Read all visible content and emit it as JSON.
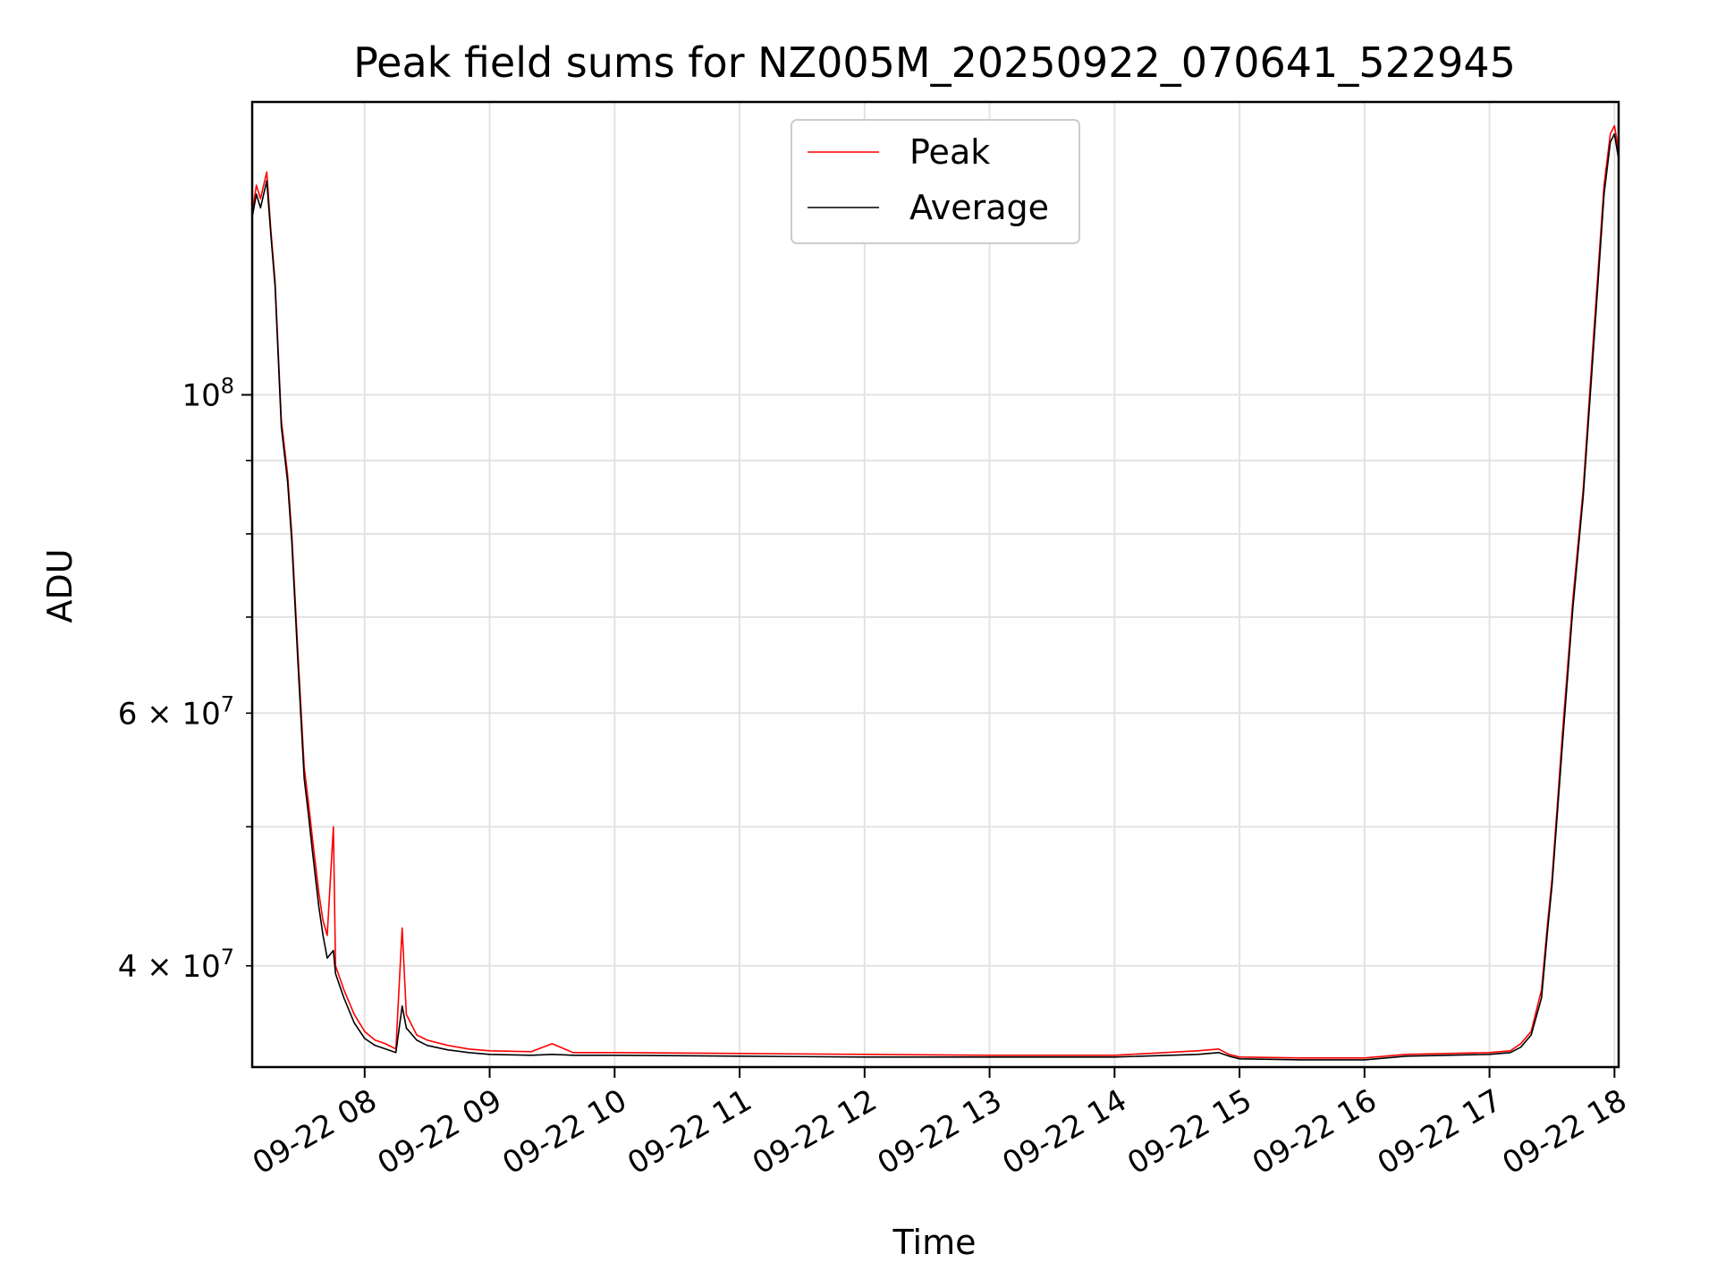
{
  "chart_data": {
    "type": "line",
    "title": "Peak field sums for NZ005M_20250922_070641_522945",
    "xlabel": "Time",
    "ylabel": "ADU",
    "yscale": "log",
    "grid": true,
    "legend_position": "top-center",
    "xlim": [
      "2025-09-22T07:06",
      "2025-09-22T18:02"
    ],
    "ylim": [
      34000000,
      160000000
    ],
    "x_ticks": [
      {
        "at": "2025-09-22T08:00",
        "label": "09-22 08"
      },
      {
        "at": "2025-09-22T09:00",
        "label": "09-22 09"
      },
      {
        "at": "2025-09-22T10:00",
        "label": "09-22 10"
      },
      {
        "at": "2025-09-22T11:00",
        "label": "09-22 11"
      },
      {
        "at": "2025-09-22T12:00",
        "label": "09-22 12"
      },
      {
        "at": "2025-09-22T13:00",
        "label": "09-22 13"
      },
      {
        "at": "2025-09-22T14:00",
        "label": "09-22 14"
      },
      {
        "at": "2025-09-22T15:00",
        "label": "09-22 15"
      },
      {
        "at": "2025-09-22T16:00",
        "label": "09-22 16"
      },
      {
        "at": "2025-09-22T17:00",
        "label": "09-22 17"
      },
      {
        "at": "2025-09-22T18:00",
        "label": "09-22 18"
      }
    ],
    "y_major_ticks": [
      {
        "value": 100000000,
        "base": "10",
        "exp": "8",
        "mult": ""
      }
    ],
    "y_minor_ticks": [
      {
        "value": 40000000,
        "mult": "4",
        "base": "10",
        "exp": "7"
      },
      {
        "value": 60000000,
        "mult": "6",
        "base": "10",
        "exp": "7"
      }
    ],
    "y_minor_unlabeled": [
      50000000,
      70000000,
      80000000,
      90000000
    ],
    "series": [
      {
        "name": "Peak",
        "color": "#ff0000",
        "points": [
          [
            "2025-09-22T07:06",
            134000000
          ],
          [
            "2025-09-22T07:08",
            140000000
          ],
          [
            "2025-09-22T07:10",
            137000000
          ],
          [
            "2025-09-22T07:13",
            143000000
          ],
          [
            "2025-09-22T07:15",
            130000000
          ],
          [
            "2025-09-22T07:17",
            120000000
          ],
          [
            "2025-09-22T07:20",
            96000000
          ],
          [
            "2025-09-22T07:23",
            88000000
          ],
          [
            "2025-09-22T07:25",
            80000000
          ],
          [
            "2025-09-22T07:28",
            66000000
          ],
          [
            "2025-09-22T07:31",
            55000000
          ],
          [
            "2025-09-22T07:33",
            52000000
          ],
          [
            "2025-09-22T07:35",
            49000000
          ],
          [
            "2025-09-22T07:38",
            45000000
          ],
          [
            "2025-09-22T07:40",
            43000000
          ],
          [
            "2025-09-22T07:42",
            42000000
          ],
          [
            "2025-09-22T07:45",
            50000000
          ],
          [
            "2025-09-22T07:46",
            40000000
          ],
          [
            "2025-09-22T07:50",
            38500000
          ],
          [
            "2025-09-22T07:55",
            37000000
          ],
          [
            "2025-09-22T08:00",
            36000000
          ],
          [
            "2025-09-22T08:05",
            35500000
          ],
          [
            "2025-09-22T08:10",
            35300000
          ],
          [
            "2025-09-22T08:15",
            35000000
          ],
          [
            "2025-09-22T08:18",
            42500000
          ],
          [
            "2025-09-22T08:20",
            37000000
          ],
          [
            "2025-09-22T08:25",
            35800000
          ],
          [
            "2025-09-22T08:30",
            35500000
          ],
          [
            "2025-09-22T08:40",
            35200000
          ],
          [
            "2025-09-22T08:50",
            35000000
          ],
          [
            "2025-09-22T09:00",
            34900000
          ],
          [
            "2025-09-22T09:20",
            34850000
          ],
          [
            "2025-09-22T09:30",
            35300000
          ],
          [
            "2025-09-22T09:40",
            34800000
          ],
          [
            "2025-09-22T10:00",
            34800000
          ],
          [
            "2025-09-22T11:00",
            34750000
          ],
          [
            "2025-09-22T12:00",
            34700000
          ],
          [
            "2025-09-22T13:00",
            34650000
          ],
          [
            "2025-09-22T14:00",
            34650000
          ],
          [
            "2025-09-22T14:40",
            34900000
          ],
          [
            "2025-09-22T14:50",
            35000000
          ],
          [
            "2025-09-22T14:55",
            34700000
          ],
          [
            "2025-09-22T15:00",
            34550000
          ],
          [
            "2025-09-22T15:30",
            34500000
          ],
          [
            "2025-09-22T16:00",
            34500000
          ],
          [
            "2025-09-22T16:20",
            34700000
          ],
          [
            "2025-09-22T16:40",
            34750000
          ],
          [
            "2025-09-22T17:00",
            34800000
          ],
          [
            "2025-09-22T17:10",
            34900000
          ],
          [
            "2025-09-22T17:15",
            35300000
          ],
          [
            "2025-09-22T17:20",
            36000000
          ],
          [
            "2025-09-22T17:25",
            38500000
          ],
          [
            "2025-09-22T17:28",
            43000000
          ],
          [
            "2025-09-22T17:30",
            46000000
          ],
          [
            "2025-09-22T17:35",
            58000000
          ],
          [
            "2025-09-22T17:40",
            72000000
          ],
          [
            "2025-09-22T17:45",
            86000000
          ],
          [
            "2025-09-22T17:50",
            110000000
          ],
          [
            "2025-09-22T17:55",
            140000000
          ],
          [
            "2025-09-22T17:58",
            152000000
          ],
          [
            "2025-09-22T18:00",
            154000000
          ],
          [
            "2025-09-22T18:02",
            148000000
          ]
        ]
      },
      {
        "name": "Average",
        "color": "#000000",
        "points": [
          [
            "2025-09-22T07:06",
            133000000
          ],
          [
            "2025-09-22T07:08",
            138000000
          ],
          [
            "2025-09-22T07:10",
            135000000
          ],
          [
            "2025-09-22T07:13",
            141000000
          ],
          [
            "2025-09-22T07:15",
            129000000
          ],
          [
            "2025-09-22T07:17",
            119000000
          ],
          [
            "2025-09-22T07:20",
            95000000
          ],
          [
            "2025-09-22T07:23",
            87000000
          ],
          [
            "2025-09-22T07:25",
            79000000
          ],
          [
            "2025-09-22T07:28",
            65000000
          ],
          [
            "2025-09-22T07:31",
            54000000
          ],
          [
            "2025-09-22T07:33",
            51000000
          ],
          [
            "2025-09-22T07:35",
            48000000
          ],
          [
            "2025-09-22T07:38",
            44000000
          ],
          [
            "2025-09-22T07:40",
            42000000
          ],
          [
            "2025-09-22T07:42",
            40500000
          ],
          [
            "2025-09-22T07:45",
            41000000
          ],
          [
            "2025-09-22T07:46",
            39500000
          ],
          [
            "2025-09-22T07:50",
            38000000
          ],
          [
            "2025-09-22T07:55",
            36500000
          ],
          [
            "2025-09-22T08:00",
            35600000
          ],
          [
            "2025-09-22T08:05",
            35200000
          ],
          [
            "2025-09-22T08:10",
            35000000
          ],
          [
            "2025-09-22T08:15",
            34800000
          ],
          [
            "2025-09-22T08:18",
            37500000
          ],
          [
            "2025-09-22T08:20",
            36200000
          ],
          [
            "2025-09-22T08:25",
            35500000
          ],
          [
            "2025-09-22T08:30",
            35200000
          ],
          [
            "2025-09-22T08:40",
            34950000
          ],
          [
            "2025-09-22T08:50",
            34800000
          ],
          [
            "2025-09-22T09:00",
            34700000
          ],
          [
            "2025-09-22T09:20",
            34650000
          ],
          [
            "2025-09-22T09:30",
            34700000
          ],
          [
            "2025-09-22T09:40",
            34650000
          ],
          [
            "2025-09-22T10:00",
            34650000
          ],
          [
            "2025-09-22T11:00",
            34600000
          ],
          [
            "2025-09-22T12:00",
            34550000
          ],
          [
            "2025-09-22T13:00",
            34550000
          ],
          [
            "2025-09-22T14:00",
            34550000
          ],
          [
            "2025-09-22T14:40",
            34700000
          ],
          [
            "2025-09-22T14:50",
            34800000
          ],
          [
            "2025-09-22T14:55",
            34600000
          ],
          [
            "2025-09-22T15:00",
            34450000
          ],
          [
            "2025-09-22T15:30",
            34400000
          ],
          [
            "2025-09-22T16:00",
            34400000
          ],
          [
            "2025-09-22T16:20",
            34600000
          ],
          [
            "2025-09-22T16:40",
            34650000
          ],
          [
            "2025-09-22T17:00",
            34700000
          ],
          [
            "2025-09-22T17:10",
            34800000
          ],
          [
            "2025-09-22T17:15",
            35100000
          ],
          [
            "2025-09-22T17:20",
            35800000
          ],
          [
            "2025-09-22T17:25",
            38000000
          ],
          [
            "2025-09-22T17:28",
            42500000
          ],
          [
            "2025-09-22T17:30",
            45500000
          ],
          [
            "2025-09-22T17:35",
            57000000
          ],
          [
            "2025-09-22T17:40",
            71000000
          ],
          [
            "2025-09-22T17:45",
            85000000
          ],
          [
            "2025-09-22T17:50",
            108000000
          ],
          [
            "2025-09-22T17:55",
            138000000
          ],
          [
            "2025-09-22T17:58",
            150000000
          ],
          [
            "2025-09-22T18:00",
            152000000
          ],
          [
            "2025-09-22T18:02",
            146000000
          ]
        ]
      }
    ]
  }
}
